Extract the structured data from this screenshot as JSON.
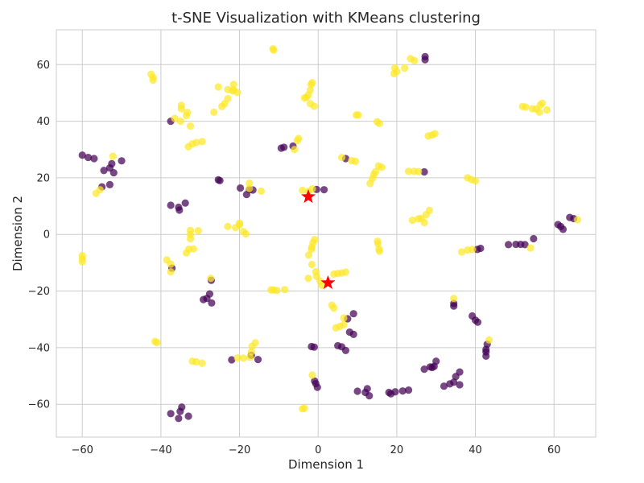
{
  "chart_data": {
    "type": "scatter",
    "title": "t-SNE Visualization with KMeans clustering",
    "xlabel": "Dimension 1",
    "ylabel": "Dimension 2",
    "xlim": [
      -66.6,
      70.6
    ],
    "ylim": [
      -71.6,
      72.3
    ],
    "xticks": [
      -60,
      -40,
      -20,
      0,
      20,
      40,
      60
    ],
    "yticks": [
      -60,
      -40,
      -20,
      0,
      20,
      40,
      60
    ],
    "grid": true,
    "legend": "none",
    "colors": {
      "cluster_0": "#440154",
      "cluster_1": "#fde725",
      "centroid": "#ff0000"
    },
    "series": [
      {
        "cluster": 0,
        "points": [
          [
            -60,
            28
          ],
          [
            -58.5,
            27.2
          ],
          [
            -57,
            26.8
          ],
          [
            -54.5,
            22.6
          ],
          [
            -53,
            23.5
          ],
          [
            -52.5,
            25
          ],
          [
            -52,
            21.8
          ],
          [
            -50,
            26
          ],
          [
            -55,
            16.8
          ],
          [
            -53,
            17.6
          ],
          [
            -37.5,
            40
          ],
          [
            -37.5,
            10.3
          ],
          [
            -35.5,
            9.6
          ],
          [
            -35.3,
            8.6
          ],
          [
            -33.8,
            11.1
          ],
          [
            -37.2,
            -11.9
          ],
          [
            -27.2,
            -16.2
          ],
          [
            -27.6,
            -21
          ],
          [
            -28.3,
            -22.6
          ],
          [
            -29.2,
            -23
          ],
          [
            -27.1,
            -24.2
          ],
          [
            -25.4,
            19.3
          ],
          [
            -25,
            19
          ],
          [
            -19.8,
            16.4
          ],
          [
            -18.2,
            14.1
          ],
          [
            -17.5,
            15.8
          ],
          [
            -16.6,
            15.7
          ],
          [
            -9.4,
            30.5
          ],
          [
            -8.7,
            30.8
          ],
          [
            -6.4,
            31.2
          ],
          [
            -0.4,
            15.9
          ],
          [
            1.5,
            15.8
          ],
          [
            -17,
            -42.7
          ],
          [
            -15.3,
            -44.2
          ],
          [
            -22,
            -44.3
          ],
          [
            -37.5,
            -63.3
          ],
          [
            -35.5,
            -65
          ],
          [
            -35.1,
            -62.5
          ],
          [
            -34.7,
            -61
          ],
          [
            -33,
            -64.2
          ],
          [
            -1.7,
            -39.6
          ],
          [
            -1,
            -39.8
          ],
          [
            -0.9,
            -51.8
          ],
          [
            -0.6,
            -52.7
          ],
          [
            -0.2,
            -54
          ],
          [
            5,
            -39.3
          ],
          [
            6,
            -39.7
          ],
          [
            7,
            -41
          ],
          [
            7.5,
            -29.8
          ],
          [
            8,
            -34.5
          ],
          [
            9,
            -28
          ],
          [
            9,
            -35.3
          ],
          [
            10,
            -55.4
          ],
          [
            12,
            -55.8
          ],
          [
            12.5,
            -54.5
          ],
          [
            13,
            -57
          ],
          [
            18,
            -55.8
          ],
          [
            18.5,
            -56.3
          ],
          [
            19.6,
            -55.6
          ],
          [
            21.5,
            -55.3
          ],
          [
            23,
            -55
          ],
          [
            7,
            26.8
          ],
          [
            27.2,
            62.8
          ],
          [
            27.2,
            61.7
          ],
          [
            27,
            22.1
          ],
          [
            27,
            -47.6
          ],
          [
            28.5,
            -46.8
          ],
          [
            29,
            -47
          ],
          [
            29.5,
            -46.6
          ],
          [
            30,
            -44.8
          ],
          [
            32,
            -53.6
          ],
          [
            33.5,
            -52.8
          ],
          [
            34.5,
            -52.2
          ],
          [
            35,
            -50.2
          ],
          [
            36,
            -48.6
          ],
          [
            36,
            -53.1
          ],
          [
            34.5,
            -25.3
          ],
          [
            34.5,
            -24.4
          ],
          [
            39.2,
            -28.8
          ],
          [
            40,
            -30.3
          ],
          [
            40.6,
            -31
          ],
          [
            40.5,
            -5.3
          ],
          [
            41.3,
            -4.9
          ],
          [
            48.4,
            -3.6
          ],
          [
            50.3,
            -3.5
          ],
          [
            51.5,
            -3.5
          ],
          [
            52.6,
            -3.6
          ],
          [
            54.8,
            -1.5
          ],
          [
            61,
            3.5
          ],
          [
            61.7,
            2.8
          ],
          [
            62.3,
            1.8
          ],
          [
            64,
            6
          ],
          [
            65,
            5.6
          ],
          [
            42.7,
            -43
          ],
          [
            42.7,
            -41.5
          ],
          [
            42.7,
            -40.6
          ],
          [
            43,
            -38.8
          ]
        ]
      },
      {
        "cluster": 1,
        "points": [
          [
            -60,
            -7.5
          ],
          [
            -60,
            -8.5
          ],
          [
            -60,
            -9.6
          ],
          [
            -56.5,
            14.5
          ],
          [
            -55.5,
            15.8
          ],
          [
            -52.2,
            27.6
          ],
          [
            -42.5,
            56.6
          ],
          [
            -42,
            55.5
          ],
          [
            -42,
            54.5
          ],
          [
            -41.5,
            -37.8
          ],
          [
            -41,
            -38.2
          ],
          [
            -38.5,
            -9
          ],
          [
            -37.5,
            -13.2
          ],
          [
            -37.5,
            -10.5
          ],
          [
            -36.5,
            41
          ],
          [
            -35,
            40
          ],
          [
            -34.8,
            44.4
          ],
          [
            -34.8,
            45.6
          ],
          [
            -33.5,
            42
          ],
          [
            -33.3,
            43.1
          ],
          [
            -33,
            31
          ],
          [
            -32.5,
            38.3
          ],
          [
            -32,
            32
          ],
          [
            -31,
            32.5
          ],
          [
            -29.5,
            32.8
          ],
          [
            -33.5,
            -6.5
          ],
          [
            -31.7,
            -5.1
          ],
          [
            -32.9,
            -5.2
          ],
          [
            -32.5,
            -1.5
          ],
          [
            -32.5,
            0
          ],
          [
            -32.5,
            1.4
          ],
          [
            -30.5,
            1.3
          ],
          [
            -32,
            -44.8
          ],
          [
            -31,
            -45
          ],
          [
            -29.5,
            -45.5
          ],
          [
            -27.3,
            -15.5
          ],
          [
            -26.5,
            43.2
          ],
          [
            -25.4,
            52.1
          ],
          [
            -24.5,
            45.2
          ],
          [
            -23.8,
            46.2
          ],
          [
            -23,
            48
          ],
          [
            -23,
            51.2
          ],
          [
            -21.8,
            50.8
          ],
          [
            -21.5,
            53
          ],
          [
            -21.5,
            51
          ],
          [
            -20.6,
            50.2
          ],
          [
            -23,
            2.8
          ],
          [
            -21,
            2.4
          ],
          [
            -20,
            3.4
          ],
          [
            -20,
            4
          ],
          [
            -19,
            1
          ],
          [
            -18.4,
            0.2
          ],
          [
            -17.5,
            18.1
          ],
          [
            -17.5,
            16.2
          ],
          [
            -14.5,
            15.3
          ],
          [
            -19,
            -43.7
          ],
          [
            -20.5,
            -43.6
          ],
          [
            -17,
            -41.5
          ],
          [
            -16.8,
            -39.5
          ],
          [
            -16,
            -38.3
          ],
          [
            -17.3,
            -43.4
          ],
          [
            -11.3,
            -19.6
          ],
          [
            -12,
            -19.6
          ],
          [
            -10.5,
            -19.8
          ],
          [
            -8.5,
            -19.5
          ],
          [
            -11.5,
            65.6
          ],
          [
            -11.3,
            65.1
          ],
          [
            -6,
            30
          ],
          [
            -5.3,
            33.2
          ],
          [
            -5,
            33.9
          ],
          [
            -4,
            15.6
          ],
          [
            -3.5,
            48.2
          ],
          [
            -3,
            48.4
          ],
          [
            -2.5,
            49.3
          ],
          [
            -2,
            51
          ],
          [
            -1.8,
            53
          ],
          [
            -1.5,
            53.6
          ],
          [
            -2,
            46.2
          ],
          [
            -1,
            45.3
          ],
          [
            -2.5,
            15.2
          ],
          [
            -1.5,
            16.1
          ],
          [
            -2.4,
            -7.3
          ],
          [
            -1.7,
            -5.2
          ],
          [
            -1.6,
            -4.4
          ],
          [
            -1.3,
            -3
          ],
          [
            -0.9,
            -1.8
          ],
          [
            -2.5,
            -15.5
          ],
          [
            -1.6,
            -10.6
          ],
          [
            -0.6,
            -13.2
          ],
          [
            -0.4,
            -14.8
          ],
          [
            0.5,
            -16.5
          ],
          [
            1,
            -18
          ],
          [
            -1.5,
            -49.7
          ],
          [
            -4,
            -61.6
          ],
          [
            -3.5,
            -61.4
          ],
          [
            3.5,
            -25
          ],
          [
            4,
            -26
          ],
          [
            4.5,
            -33
          ],
          [
            5.5,
            -32.5
          ],
          [
            6.5,
            -31.9
          ],
          [
            6.5,
            -29.5
          ],
          [
            4,
            -14
          ],
          [
            5,
            -13.8
          ],
          [
            6,
            -13.6
          ],
          [
            7,
            -13.3
          ],
          [
            6,
            27.2
          ],
          [
            8.5,
            26.1
          ],
          [
            9.5,
            25.8
          ],
          [
            9.7,
            42.2
          ],
          [
            10.2,
            42.2
          ],
          [
            13.2,
            18
          ],
          [
            13.8,
            19.8
          ],
          [
            14.2,
            21.2
          ],
          [
            14.6,
            22.2
          ],
          [
            15.4,
            24.2
          ],
          [
            16.2,
            23.7
          ],
          [
            15,
            39.8
          ],
          [
            15.6,
            39.2
          ],
          [
            15.1,
            -2.4
          ],
          [
            15.2,
            -3.3
          ],
          [
            15.5,
            -5.2
          ],
          [
            15.6,
            -5.9
          ],
          [
            19.5,
            58.8
          ],
          [
            20,
            57.5
          ],
          [
            19.3,
            56.8
          ],
          [
            22,
            58.8
          ],
          [
            23.5,
            62.1
          ],
          [
            24.5,
            61.4
          ],
          [
            23,
            22.3
          ],
          [
            24.4,
            22.3
          ],
          [
            25.5,
            22.2
          ],
          [
            24,
            5
          ],
          [
            25.5,
            5.5
          ],
          [
            26.2,
            5.7
          ],
          [
            27,
            4.2
          ],
          [
            27.5,
            7
          ],
          [
            28.3,
            8.5
          ],
          [
            28,
            34.8
          ],
          [
            29,
            35.1
          ],
          [
            29.7,
            35.6
          ],
          [
            34.5,
            -22.6
          ],
          [
            36.5,
            -6.2
          ],
          [
            38,
            -5.5
          ],
          [
            39.2,
            -5.3
          ],
          [
            38,
            20
          ],
          [
            39,
            19.4
          ],
          [
            40,
            18.9
          ],
          [
            43.5,
            -37.3
          ],
          [
            52,
            45.2
          ],
          [
            52.8,
            45
          ],
          [
            54.5,
            44.4
          ],
          [
            55.5,
            44.3
          ],
          [
            56.3,
            43.2
          ],
          [
            56.5,
            45.7
          ],
          [
            57,
            46.4
          ],
          [
            58.2,
            44
          ],
          [
            54,
            -4.8
          ],
          [
            66,
            5.2
          ]
        ]
      }
    ],
    "centroids": [
      [
        -2.5,
        13.3
      ],
      [
        2.5,
        -17.1
      ]
    ]
  }
}
